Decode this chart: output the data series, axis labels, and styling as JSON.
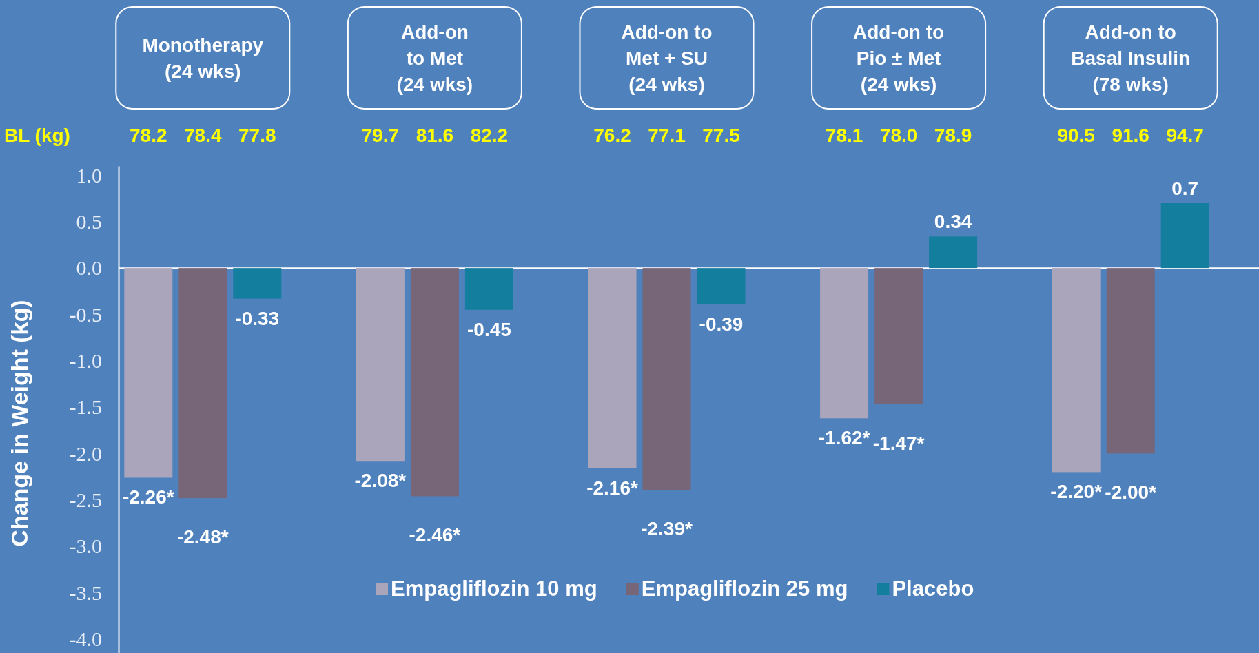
{
  "chart_data": {
    "type": "bar",
    "categories": [
      "Monotherapy\n(24 wks)",
      "Add-on\nto Met\n(24 wks)",
      "Add-on to\nMet + SU\n(24 wks)",
      "Add-on to\nPio ± Met\n(24 wks)",
      "Add-on to\nBasal Insulin\n(78 wks)"
    ],
    "series": [
      {
        "name": "Empagliflozin 10 mg",
        "color": "#aaa5ba",
        "values": [
          -2.26,
          -2.08,
          -2.16,
          -1.62,
          -2.2
        ],
        "value_labels": [
          "-2.26*",
          "-2.08*",
          "-2.16*",
          "-1.62*",
          "-2.20*"
        ]
      },
      {
        "name": "Empagliflozin 25 mg",
        "color": "#776578",
        "values": [
          -2.48,
          -2.46,
          -2.39,
          -1.47,
          -2.0
        ],
        "value_labels": [
          "-2.48*",
          "-2.46*",
          "-2.39*",
          "-1.47*",
          "-2.00*"
        ]
      },
      {
        "name": "Placebo",
        "color": "#137e9d",
        "values": [
          -0.33,
          -0.45,
          -0.39,
          0.34,
          0.7
        ],
        "value_labels": [
          "-0.33",
          "-0.45",
          "-0.39",
          "0.34",
          "0.7"
        ]
      }
    ],
    "ylabel": "Change in Weight (kg)",
    "ylim": [
      -4.15,
      1.1
    ],
    "yticks": [
      {
        "value": 1,
        "label": "1.0"
      },
      {
        "value": 0.5,
        "label": "0.5"
      },
      {
        "value": 0,
        "label": "0.0"
      },
      {
        "value": -0.5,
        "label": "-0.5"
      },
      {
        "value": -1,
        "label": "-1.0"
      },
      {
        "value": -1.5,
        "label": "-1.5"
      },
      {
        "value": -2,
        "label": "-2.0"
      },
      {
        "value": -2.5,
        "label": "-2.5"
      },
      {
        "value": -3,
        "label": "-3.0"
      },
      {
        "value": -3.5,
        "label": "-3.5"
      },
      {
        "value": -4,
        "label": "-4.0"
      }
    ],
    "annotations": [
      "BL (kg)",
      "78.2",
      "78.4",
      "77.8",
      "79.7",
      "81.6",
      "82.2",
      "76.2",
      "77.1",
      "77.5",
      "78.1",
      "78.0",
      "78.9",
      "90.5",
      "91.6",
      "94.7"
    ],
    "legend": "bottom",
    "ref_lines": [
      {
        "axis": "y",
        "value": 0,
        "color": "#ffffff"
      }
    ]
  }
}
